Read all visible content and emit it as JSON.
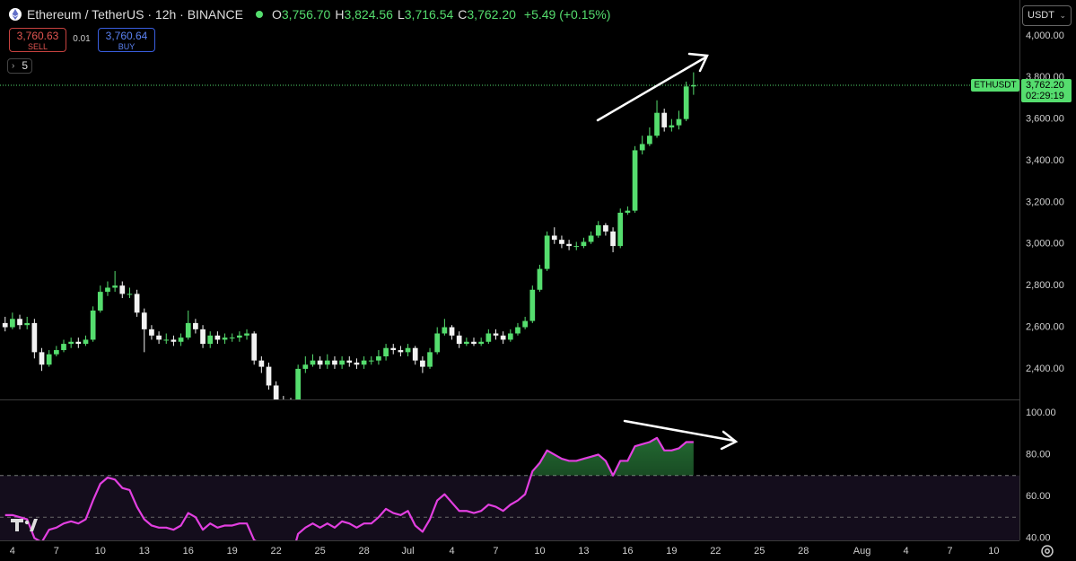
{
  "header": {
    "symbol": "Ethereum / TetherUS · 12h · BINANCE",
    "ohlc": [
      {
        "key": "O",
        "label": "3,756.70"
      },
      {
        "key": "H",
        "label": "3,824.56"
      },
      {
        "key": "L",
        "label": "3,716.54"
      },
      {
        "key": "C",
        "label": "3,762.20"
      }
    ],
    "change": "+5.49 (+0.15%)",
    "sell": {
      "price": "3,760.63",
      "label": "SELL"
    },
    "spread": "0.01",
    "buy": {
      "price": "3,760.64",
      "label": "BUY"
    },
    "indicators_count": "5",
    "currency": "USDT"
  },
  "chart_data": [
    {
      "type": "candlestick",
      "up_color": "#55dd6e",
      "down_color": "#f2f2f2",
      "xlim": [
        -0.7,
        138.5
      ],
      "ylim": [
        2253,
        4172
      ],
      "yticks": [
        {
          "value": 2400,
          "label": "2,400.00"
        },
        {
          "value": 2600,
          "label": "2,600.00"
        },
        {
          "value": 2800,
          "label": "2,800.00"
        },
        {
          "value": 3000,
          "label": "3,000.00"
        },
        {
          "value": 3200,
          "label": "3,200.00"
        },
        {
          "value": 3400,
          "label": "3,400.00"
        },
        {
          "value": 3600,
          "label": "3,600.00"
        },
        {
          "value": 3800,
          "label": "3,800.00"
        },
        {
          "value": 4000,
          "label": "4,000.00"
        }
      ],
      "grid": false,
      "last_price": {
        "value": 3762.2,
        "label": "3,762.20",
        "countdown": "02:29:19"
      },
      "series": [
        {
          "name": "ETHUSDT",
          "open": [
            2620,
            2600,
            2640,
            2610,
            2620,
            2480,
            2420,
            2470,
            2490,
            2520,
            2530,
            2520,
            2540,
            2680,
            2770,
            2790,
            2800,
            2760,
            2760,
            2670,
            2590,
            2560,
            2540,
            2540,
            2530,
            2550,
            2620,
            2590,
            2520,
            2560,
            2540,
            2550,
            2550,
            2560,
            2570,
            2440,
            2410,
            2320,
            2250,
            2240,
            2230,
            2400,
            2420,
            2440,
            2420,
            2440,
            2420,
            2440,
            2430,
            2420,
            2440,
            2440,
            2460,
            2500,
            2490,
            2480,
            2500,
            2440,
            2410,
            2480,
            2570,
            2600,
            2560,
            2520,
            2530,
            2520,
            2530,
            2570,
            2560,
            2540,
            2570,
            2600,
            2630,
            2780,
            2880,
            3040,
            3020,
            3000,
            2990,
            2990,
            3010,
            3040,
            3090,
            3060,
            2990,
            3150,
            3160,
            3450,
            3480,
            3520,
            3630,
            3560,
            3570,
            3600,
            3756.7
          ],
          "high": [
            2650,
            2670,
            2660,
            2650,
            2640,
            2500,
            2490,
            2510,
            2540,
            2550,
            2550,
            2560,
            2700,
            2800,
            2820,
            2870,
            2820,
            2790,
            2780,
            2690,
            2610,
            2580,
            2570,
            2560,
            2570,
            2680,
            2640,
            2610,
            2580,
            2580,
            2570,
            2570,
            2580,
            2590,
            2580,
            2460,
            2430,
            2340,
            2270,
            2260,
            2420,
            2460,
            2470,
            2460,
            2470,
            2460,
            2460,
            2460,
            2450,
            2460,
            2460,
            2490,
            2520,
            2520,
            2510,
            2520,
            2510,
            2460,
            2500,
            2600,
            2640,
            2610,
            2580,
            2550,
            2550,
            2550,
            2590,
            2590,
            2580,
            2590,
            2620,
            2650,
            2800,
            2900,
            3060,
            3080,
            3040,
            3020,
            3010,
            3030,
            3060,
            3110,
            3100,
            3080,
            3170,
            3180,
            3470,
            3520,
            3560,
            3690,
            3650,
            3600,
            3640,
            3780,
            3824.56
          ],
          "low": [
            2580,
            2590,
            2590,
            2590,
            2450,
            2390,
            2410,
            2460,
            2480,
            2500,
            2500,
            2510,
            2530,
            2670,
            2750,
            2770,
            2740,
            2740,
            2650,
            2480,
            2540,
            2520,
            2520,
            2510,
            2510,
            2540,
            2570,
            2500,
            2500,
            2520,
            2520,
            2530,
            2530,
            2540,
            2420,
            2380,
            2300,
            2230,
            2220,
            2210,
            2220,
            2380,
            2410,
            2400,
            2400,
            2400,
            2400,
            2410,
            2400,
            2400,
            2420,
            2420,
            2440,
            2470,
            2460,
            2460,
            2420,
            2380,
            2400,
            2470,
            2560,
            2540,
            2500,
            2510,
            2510,
            2510,
            2520,
            2540,
            2520,
            2530,
            2560,
            2590,
            2620,
            2770,
            2870,
            3000,
            2980,
            2970,
            2970,
            2980,
            3000,
            3030,
            3040,
            2960,
            2980,
            3140,
            3150,
            3430,
            3470,
            3510,
            3540,
            3540,
            3550,
            3590,
            3716.54
          ],
          "close": [
            2600,
            2640,
            2610,
            2620,
            2480,
            2420,
            2470,
            2490,
            2520,
            2530,
            2520,
            2540,
            2680,
            2770,
            2790,
            2800,
            2760,
            2760,
            2670,
            2590,
            2560,
            2540,
            2540,
            2530,
            2550,
            2620,
            2590,
            2520,
            2560,
            2540,
            2550,
            2550,
            2560,
            2570,
            2440,
            2410,
            2320,
            2250,
            2240,
            2230,
            2400,
            2420,
            2440,
            2420,
            2440,
            2420,
            2440,
            2430,
            2420,
            2440,
            2440,
            2460,
            2500,
            2490,
            2480,
            2500,
            2440,
            2410,
            2480,
            2570,
            2600,
            2560,
            2520,
            2530,
            2520,
            2530,
            2570,
            2560,
            2540,
            2570,
            2600,
            2630,
            2780,
            2880,
            3040,
            3020,
            3000,
            2990,
            2990,
            3010,
            3040,
            3090,
            3060,
            2990,
            3150,
            3160,
            3450,
            3480,
            3520,
            3630,
            3560,
            3570,
            3600,
            3756.7,
            3762.2
          ]
        }
      ]
    },
    {
      "type": "line",
      "color": "#e23fe0",
      "fill_color": "#3fbf5a",
      "band_color": "#140d1c",
      "xlim": [
        -0.7,
        138.5
      ],
      "ylim": [
        38.9,
        106
      ],
      "yticks": [
        {
          "value": 40,
          "label": "40.00"
        },
        {
          "value": 60,
          "label": "60.00"
        },
        {
          "value": 80,
          "label": "80.00"
        },
        {
          "value": 100,
          "label": "100.00"
        }
      ],
      "band": [
        30,
        70
      ],
      "midline": 50,
      "xticks": [
        {
          "value": 1,
          "label": "4"
        },
        {
          "value": 7,
          "label": "7"
        },
        {
          "value": 13,
          "label": "10"
        },
        {
          "value": 19,
          "label": "13"
        },
        {
          "value": 25,
          "label": "16"
        },
        {
          "value": 31,
          "label": "19"
        },
        {
          "value": 37,
          "label": "22"
        },
        {
          "value": 43,
          "label": "25"
        },
        {
          "value": 49,
          "label": "28"
        },
        {
          "value": 55,
          "label": "Jul"
        },
        {
          "value": 61,
          "label": "4"
        },
        {
          "value": 67,
          "label": "7"
        },
        {
          "value": 73,
          "label": "10"
        },
        {
          "value": 79,
          "label": "13"
        },
        {
          "value": 85,
          "label": "16"
        },
        {
          "value": 91,
          "label": "19"
        },
        {
          "value": 97,
          "label": "22"
        },
        {
          "value": 103,
          "label": "25"
        },
        {
          "value": 109,
          "label": "28"
        },
        {
          "value": 117,
          "label": "Aug"
        },
        {
          "value": 123,
          "label": "4"
        },
        {
          "value": 129,
          "label": "7"
        },
        {
          "value": 135,
          "label": "10"
        }
      ],
      "values": [
        51,
        51,
        50,
        49,
        40,
        38,
        44,
        45,
        47,
        48,
        47,
        49,
        58,
        66,
        69,
        68,
        64,
        63,
        55,
        49,
        46,
        45,
        45,
        44,
        46,
        52,
        50,
        44,
        47,
        45,
        46,
        46,
        47,
        47,
        39,
        37,
        33,
        30,
        30,
        29,
        42,
        45,
        47,
        45,
        47,
        45,
        48,
        47,
        45,
        47,
        47,
        50,
        54,
        52,
        51,
        53,
        46,
        43,
        49,
        58,
        61,
        57,
        53,
        53,
        52,
        53,
        56,
        55,
        53,
        56,
        58,
        61,
        72,
        76,
        82,
        80,
        78,
        77,
        77,
        78,
        79,
        80,
        77,
        70,
        77,
        77,
        84,
        85,
        86,
        88,
        82,
        82,
        83,
        86,
        86
      ]
    }
  ]
}
